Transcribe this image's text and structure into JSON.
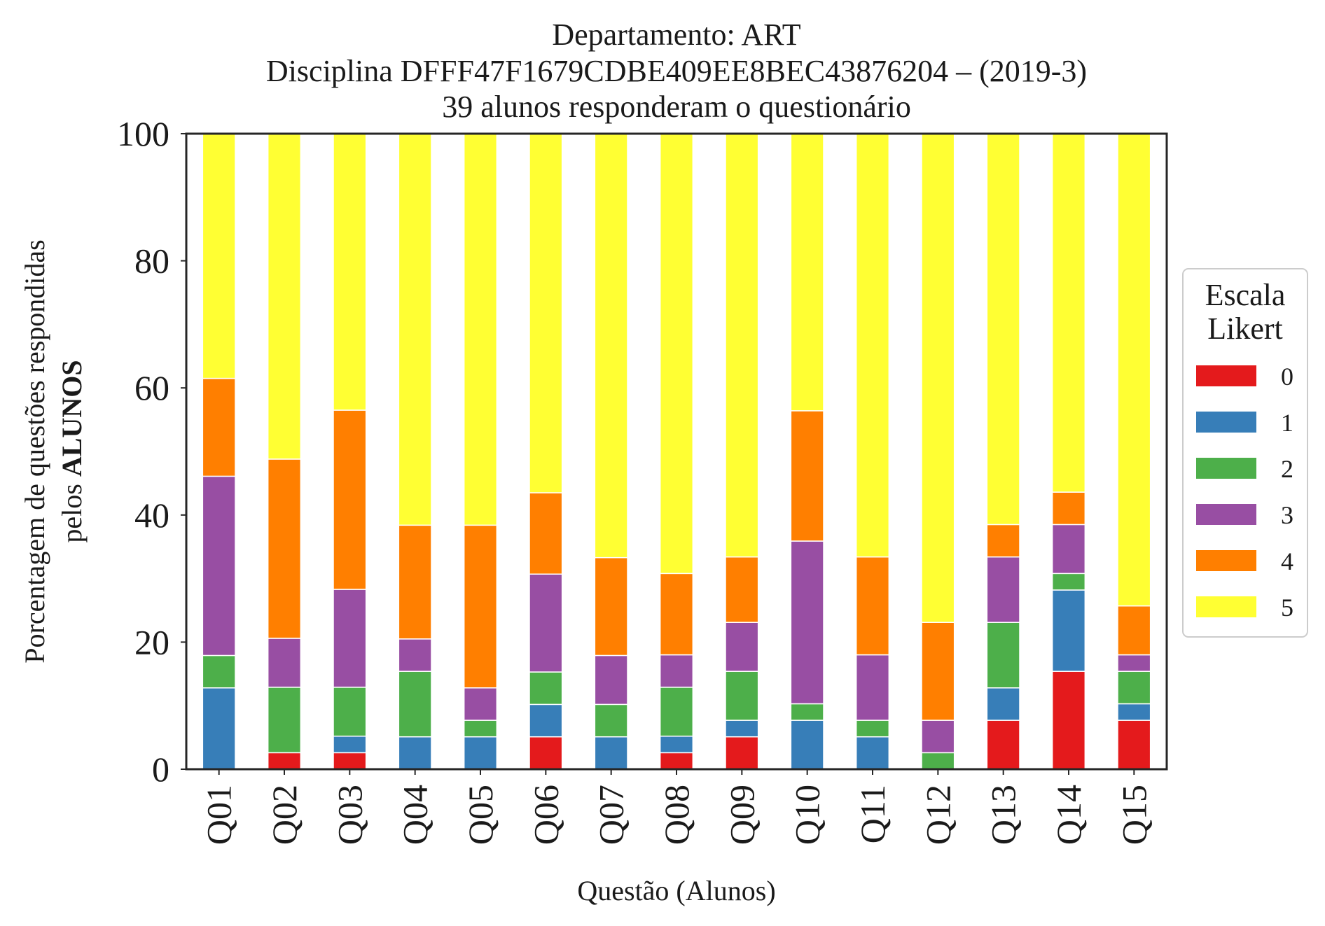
{
  "chart_data": {
    "type": "bar",
    "stacked": true,
    "title_lines": [
      "Departamento: ART",
      "Disciplina DFFF47F1679CDBE409EE8BEC43876204 – (2019-3)",
      "39 alunos responderam o questionário"
    ],
    "xlabel": "Questão (Alunos)",
    "ylabel_line1": "Porcentagem de questões respondidas",
    "ylabel_line2_prefix": "pelos ",
    "ylabel_line2_bold": "ALUNOS",
    "ylim": [
      0,
      100
    ],
    "yticks": [
      "0",
      "20",
      "40",
      "60",
      "80",
      "100"
    ],
    "grid": false,
    "legend_title_lines": [
      "Escala",
      "Likert"
    ],
    "legend_position": "right-center",
    "categories": [
      "Q01",
      "Q02",
      "Q03",
      "Q04",
      "Q05",
      "Q06",
      "Q07",
      "Q08",
      "Q09",
      "Q10",
      "Q11",
      "Q12",
      "Q13",
      "Q14",
      "Q15"
    ],
    "series": [
      {
        "name": "0",
        "color": "#e41a1c",
        "values": [
          0,
          2.6,
          2.6,
          0,
          0,
          5.1,
          0,
          2.6,
          5.1,
          0,
          0,
          0,
          7.7,
          15.4,
          7.7
        ]
      },
      {
        "name": "1",
        "color": "#377eb8",
        "values": [
          12.8,
          0,
          2.6,
          5.1,
          5.1,
          5.1,
          5.1,
          2.6,
          2.6,
          7.7,
          5.1,
          0,
          5.1,
          12.8,
          2.6
        ]
      },
      {
        "name": "2",
        "color": "#4daf4a",
        "values": [
          5.1,
          10.3,
          7.7,
          10.3,
          2.6,
          5.1,
          5.1,
          7.7,
          7.7,
          2.6,
          2.6,
          2.6,
          10.3,
          2.6,
          5.1
        ]
      },
      {
        "name": "3",
        "color": "#984ea3",
        "values": [
          28.2,
          7.7,
          15.4,
          5.1,
          5.1,
          15.4,
          7.7,
          5.1,
          7.7,
          25.6,
          10.3,
          5.1,
          10.3,
          7.7,
          2.6
        ]
      },
      {
        "name": "4",
        "color": "#ff7f00",
        "values": [
          15.4,
          28.2,
          28.2,
          17.9,
          25.6,
          12.8,
          15.4,
          12.8,
          10.3,
          20.5,
          15.4,
          15.4,
          5.1,
          5.1,
          7.7
        ]
      },
      {
        "name": "5",
        "color": "#ffff33",
        "values": [
          38.5,
          51.2,
          43.5,
          61.6,
          61.6,
          56.5,
          66.7,
          69.2,
          66.6,
          43.6,
          66.6,
          76.9,
          61.5,
          56.4,
          74.3
        ]
      }
    ]
  }
}
